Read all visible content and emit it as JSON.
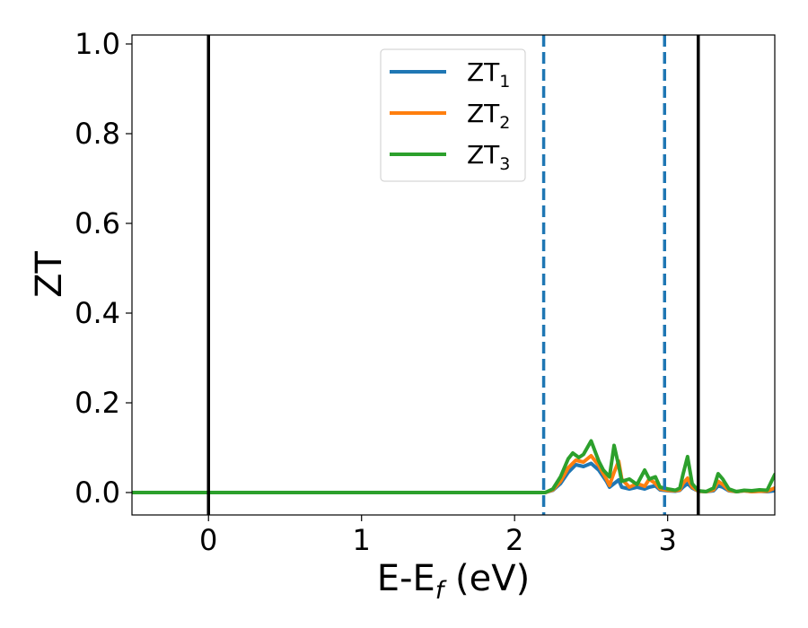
{
  "chart_data": {
    "type": "line",
    "xlabel": {
      "base": "E-E",
      "sub": "f",
      "suffix": " (eV)"
    },
    "ylabel": "ZT",
    "xlim": [
      -0.5,
      3.7
    ],
    "ylim": [
      -0.05,
      1.02
    ],
    "x_ticks": [
      0,
      1,
      2,
      3
    ],
    "x_tick_labels": [
      "0",
      "1",
      "2",
      "3"
    ],
    "y_ticks": [
      0.0,
      0.2,
      0.4,
      0.6,
      0.8,
      1.0
    ],
    "y_tick_labels": [
      "0.0",
      "0.2",
      "0.4",
      "0.6",
      "0.8",
      "1.0"
    ],
    "grid": false,
    "legend_position": "top-center",
    "vertical_lines": [
      {
        "x": 0.0,
        "style": "solid",
        "color": "#000000"
      },
      {
        "x": 2.19,
        "style": "dashed",
        "color": "#1f77b4"
      },
      {
        "x": 2.98,
        "style": "dashed",
        "color": "#1f77b4"
      },
      {
        "x": 3.2,
        "style": "solid",
        "color": "#000000"
      }
    ],
    "series": [
      {
        "name": {
          "base": "ZT",
          "sub": "1"
        },
        "color": "#1f77b4",
        "x": [
          -0.5,
          2.2,
          2.25,
          2.3,
          2.35,
          2.4,
          2.45,
          2.5,
          2.55,
          2.6,
          2.62,
          2.65,
          2.68,
          2.7,
          2.75,
          2.8,
          2.85,
          2.88,
          2.92,
          2.95,
          3.0,
          3.05,
          3.08,
          3.1,
          3.13,
          3.16,
          3.2,
          3.25,
          3.3,
          3.33,
          3.36,
          3.4,
          3.45,
          3.5,
          3.55,
          3.6,
          3.65,
          3.7
        ],
        "y": [
          0.0,
          0.0,
          0.005,
          0.02,
          0.045,
          0.062,
          0.058,
          0.065,
          0.05,
          0.025,
          0.012,
          0.02,
          0.028,
          0.012,
          0.008,
          0.012,
          0.008,
          0.012,
          0.015,
          0.006,
          0.004,
          0.003,
          0.005,
          0.012,
          0.02,
          0.01,
          0.003,
          0.002,
          0.004,
          0.015,
          0.012,
          0.004,
          0.002,
          0.004,
          0.002,
          0.003,
          0.002,
          0.004
        ]
      },
      {
        "name": {
          "base": "ZT",
          "sub": "2"
        },
        "color": "#ff7f0e",
        "x": [
          -0.5,
          2.2,
          2.25,
          2.3,
          2.35,
          2.4,
          2.45,
          2.5,
          2.55,
          2.6,
          2.62,
          2.65,
          2.68,
          2.7,
          2.75,
          2.8,
          2.85,
          2.88,
          2.92,
          2.95,
          3.0,
          3.05,
          3.08,
          3.1,
          3.13,
          3.16,
          3.2,
          3.25,
          3.3,
          3.33,
          3.36,
          3.4,
          3.45,
          3.5,
          3.55,
          3.6,
          3.65,
          3.7
        ],
        "y": [
          0.0,
          0.0,
          0.006,
          0.025,
          0.055,
          0.072,
          0.068,
          0.082,
          0.06,
          0.03,
          0.016,
          0.045,
          0.07,
          0.03,
          0.012,
          0.02,
          0.014,
          0.03,
          0.02,
          0.008,
          0.005,
          0.004,
          0.006,
          0.02,
          0.032,
          0.012,
          0.003,
          0.002,
          0.006,
          0.025,
          0.018,
          0.005,
          0.002,
          0.004,
          0.002,
          0.003,
          0.003,
          0.01
        ]
      },
      {
        "name": {
          "base": "ZT",
          "sub": "3"
        },
        "color": "#2ca02c",
        "x": [
          -0.5,
          2.2,
          2.25,
          2.3,
          2.35,
          2.38,
          2.42,
          2.45,
          2.5,
          2.55,
          2.58,
          2.62,
          2.65,
          2.68,
          2.7,
          2.75,
          2.8,
          2.85,
          2.88,
          2.92,
          2.95,
          3.0,
          3.05,
          3.08,
          3.1,
          3.13,
          3.16,
          3.2,
          3.25,
          3.3,
          3.33,
          3.36,
          3.4,
          3.45,
          3.5,
          3.55,
          3.6,
          3.65,
          3.7
        ],
        "y": [
          0.0,
          0.0,
          0.008,
          0.035,
          0.075,
          0.088,
          0.078,
          0.085,
          0.115,
          0.07,
          0.05,
          0.035,
          0.105,
          0.06,
          0.025,
          0.03,
          0.018,
          0.05,
          0.03,
          0.035,
          0.012,
          0.008,
          0.005,
          0.01,
          0.04,
          0.08,
          0.02,
          0.004,
          0.002,
          0.01,
          0.042,
          0.03,
          0.008,
          0.002,
          0.005,
          0.004,
          0.006,
          0.005,
          0.04
        ]
      }
    ]
  }
}
